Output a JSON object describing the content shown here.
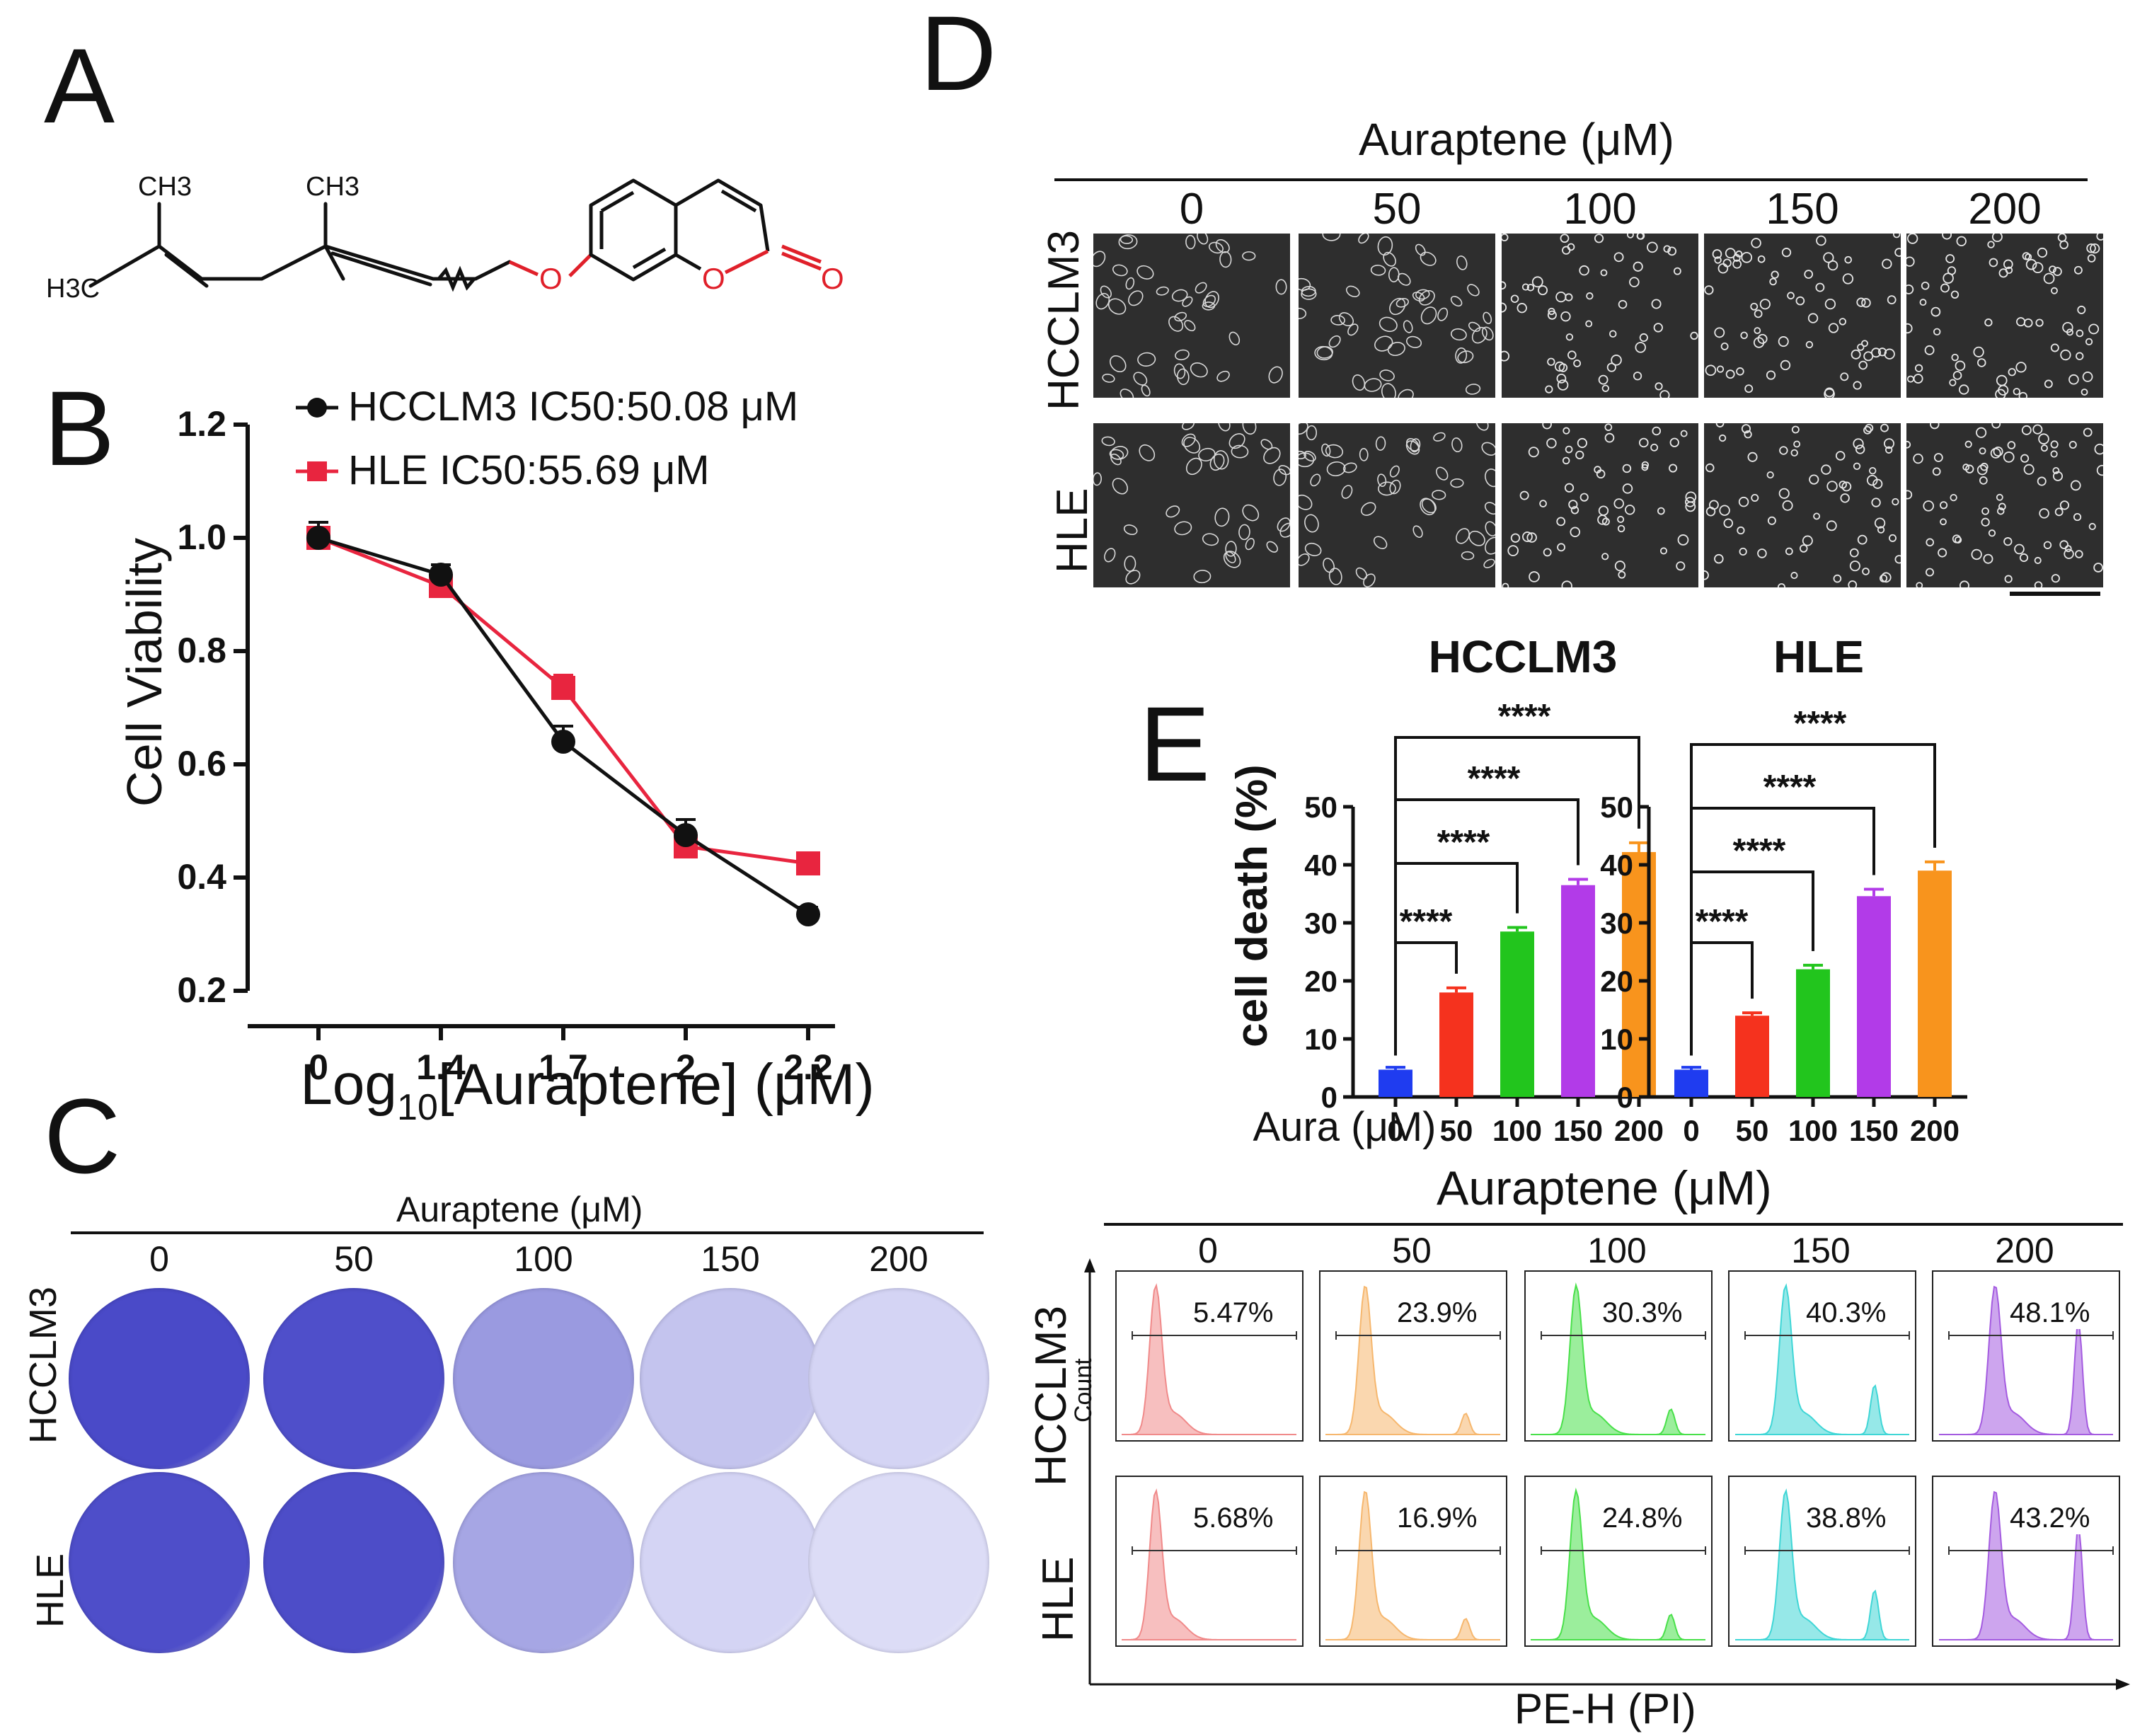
{
  "panels": {
    "A": "A",
    "B": "B",
    "C": "C",
    "D": "D",
    "E": "E"
  },
  "structure": {
    "labels": [
      "CH3",
      "CH3",
      "H3C",
      "O",
      "O",
      "O"
    ],
    "colors": {
      "bond": "#111111",
      "hetero": "#e0202a"
    }
  },
  "panel_b": {
    "legend": [
      {
        "name": "HCCLM3 IC50:50.08 μM",
        "color": "#111111",
        "marker": "circle"
      },
      {
        "name": "HLE IC50:55.69 μM",
        "color": "#e8253f",
        "marker": "square"
      }
    ],
    "ylabel": "Cell Viability",
    "xlabel_prefix": "Log",
    "xlabel_sub": "10",
    "xlabel_suffix": "[Auraptene] (μM)"
  },
  "chart_data": [
    {
      "type": "line",
      "categories": [
        "0",
        "1.4",
        "1.7",
        "2",
        "2.2"
      ],
      "ylim": [
        0.2,
        1.2
      ],
      "yticks": [
        "0.2",
        "0.4",
        "0.6",
        "0.8",
        "1.0",
        "1.2"
      ],
      "ylabel": "Cell Viability",
      "xlabel": "Log10[Auraptene] (μM)",
      "series": [
        {
          "name": "HCCLM3 IC50:50.08 μM",
          "color": "#111111",
          "values": [
            1.0,
            0.935,
            0.64,
            0.475,
            0.335
          ],
          "errors": [
            0.02,
            0.01,
            0.02,
            0.02,
            0.005
          ]
        },
        {
          "name": "HLE IC50:55.69 μM",
          "color": "#e8253f",
          "values": [
            1.0,
            0.915,
            0.735,
            0.455,
            0.425
          ],
          "errors": [
            0.02,
            0.01,
            0.015,
            0.01,
            0.005
          ]
        }
      ]
    },
    {
      "type": "bar",
      "title": "HCCLM3",
      "categories": [
        "0",
        "50",
        "100",
        "150",
        "200"
      ],
      "values": [
        4.7,
        18.0,
        28.5,
        36.5,
        42.2
      ],
      "errors": [
        0.4,
        0.8,
        0.7,
        1.0,
        1.6
      ],
      "colors": [
        "#1f3cf0",
        "#f5321e",
        "#22c51d",
        "#b23be8",
        "#f8941d"
      ],
      "ylabel": "cell death (%)",
      "ylim": [
        0,
        50
      ],
      "yticks": [
        "0",
        "10",
        "20",
        "30",
        "40",
        "50"
      ],
      "annotations": [
        "****",
        "****",
        "****",
        "****"
      ]
    },
    {
      "type": "bar",
      "title": "HLE",
      "categories": [
        "0",
        "50",
        "100",
        "150",
        "200"
      ],
      "values": [
        4.7,
        14.0,
        22.0,
        34.6,
        39.0
      ],
      "errors": [
        0.4,
        0.5,
        0.7,
        1.2,
        1.5
      ],
      "colors": [
        "#1f3cf0",
        "#f5321e",
        "#22c51d",
        "#b23be8",
        "#f8941d"
      ],
      "ylabel": "",
      "ylim": [
        0,
        50
      ],
      "yticks": [
        "0",
        "10",
        "20",
        "30",
        "40",
        "50"
      ],
      "annotations": [
        "****",
        "****",
        "****",
        "****"
      ]
    }
  ],
  "panel_e": {
    "xaxis_label": "Aura (μM)"
  },
  "panel_c": {
    "header": "Auraptene (μM)",
    "concentrations": [
      "0",
      "50",
      "100",
      "150",
      "200"
    ],
    "rows": [
      "HCCLM3",
      "HLE"
    ],
    "stain_colors": [
      "#4a4ac8",
      "#4f4fca",
      "#9a9ae0",
      "#c4c4ee",
      "#d4d4f4",
      "#4e4ec9",
      "#4d4dc8",
      "#a6a6e4",
      "#d4d4f4",
      "#dcdcf6"
    ]
  },
  "panel_d": {
    "header": "Auraptene (μM)",
    "concentrations": [
      "0",
      "50",
      "100",
      "150",
      "200"
    ],
    "rows": [
      "HCCLM3",
      "HLE"
    ]
  },
  "panel_f": {
    "header": "Auraptene (μM)",
    "concentrations": [
      "0",
      "50",
      "100",
      "150",
      "200"
    ],
    "rows": [
      "HCCLM3",
      "HLE"
    ],
    "ylabel": "Count",
    "xlabel": "PE-H (PI)",
    "colors": [
      "#f08a8a",
      "#f6b76e",
      "#49e04a",
      "#3fd6d6",
      "#a45be0"
    ],
    "percentages": [
      [
        "5.47%",
        "23.9%",
        "30.3%",
        "40.3%",
        "48.1%"
      ],
      [
        "5.68%",
        "16.9%",
        "24.8%",
        "38.8%",
        "43.2%"
      ]
    ]
  }
}
